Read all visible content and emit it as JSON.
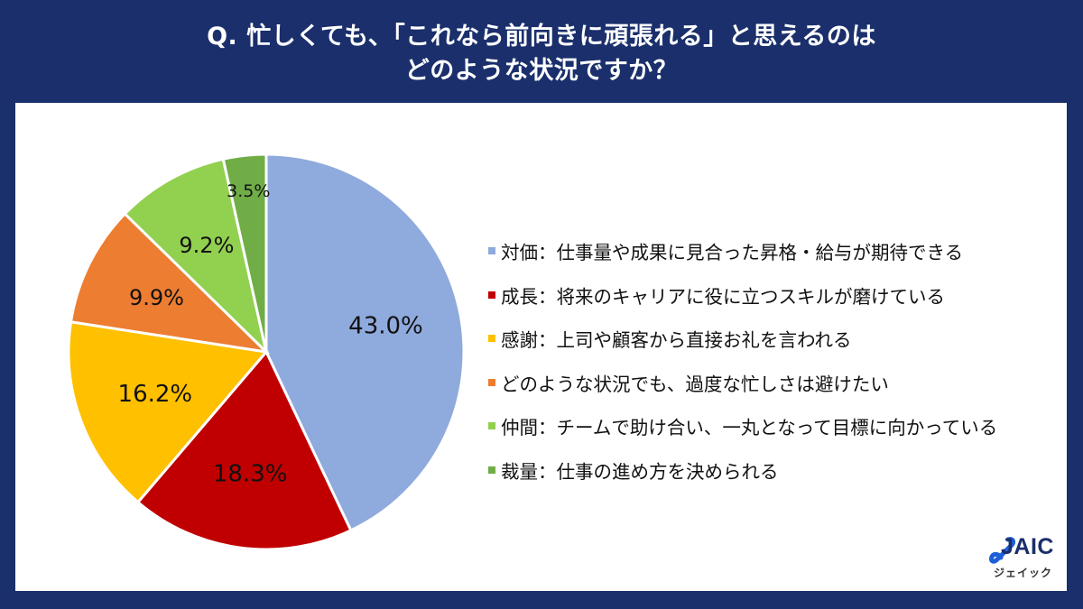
{
  "header": {
    "title_line1": "Q. 忙しくても、「これなら前向きに頑張れる」と思えるのは",
    "title_line2": "どのような状況ですか？"
  },
  "colors": {
    "background": "#1a2f6b",
    "panel": "#ffffff"
  },
  "chart_data": {
    "type": "pie",
    "title": "Q. 忙しくても、「これなら前向きに頑張れる」と思えるのは どのような状況ですか？",
    "start_angle": "12 o'clock, clockwise",
    "legend_position": "right",
    "categories": [
      "対価：仕事量や成果に見合った昇格・給与が期待できる",
      "成長：将来のキャリアに役に立つスキルが磨けている",
      "感謝：上司や顧客から直接お礼を言われる",
      "どのような状況でも、過度な忙しさは避けたい",
      "仲間：チームで助け合い、一丸となって目標に向かっている",
      "裁量：仕事の進め方を決められる"
    ],
    "values": [
      43.0,
      18.3,
      16.2,
      9.9,
      9.2,
      3.5
    ],
    "labels": [
      "43.0%",
      "18.3%",
      "16.2%",
      "9.9%",
      "9.2%",
      "3.5%"
    ],
    "colors": [
      "#8faadc",
      "#c00000",
      "#ffc000",
      "#ed7d31",
      "#92d050",
      "#70ad47"
    ],
    "units": "%"
  },
  "legend": {
    "items": [
      {
        "label": "対価：仕事量や成果に見合った昇格・給与が期待できる",
        "color": "#8faadc"
      },
      {
        "label": "成長：将来のキャリアに役に立つスキルが磨けている",
        "color": "#c00000"
      },
      {
        "label": "感謝：上司や顧客から直接お礼を言われる",
        "color": "#ffc000"
      },
      {
        "label": "どのような状況でも、過度な忙しさは避けたい",
        "color": "#ed7d31"
      },
      {
        "label": "仲間：チームで助け合い、一丸となって目標に向かっている",
        "color": "#92d050"
      },
      {
        "label": "裁量：仕事の進め方を決められる",
        "color": "#70ad47"
      }
    ]
  },
  "logo": {
    "name": "JAIC",
    "subtitle": "ジェイック"
  }
}
